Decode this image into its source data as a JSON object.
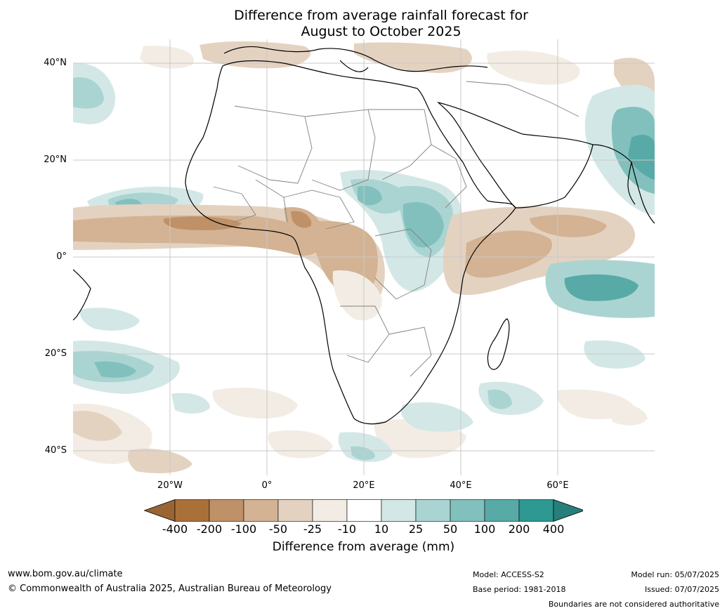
{
  "title": {
    "line1": "Difference from average rainfall forecast for",
    "line2": "August to October 2025"
  },
  "map": {
    "region": "Africa",
    "lat_labels": [
      "40°N",
      "20°N",
      "0°",
      "20°S",
      "40°S"
    ],
    "lon_labels": [
      "20°W",
      "0°",
      "20°E",
      "40°E",
      "60°E"
    ]
  },
  "colorbar": {
    "label": "Difference from average (mm)",
    "tick_labels": [
      "-400",
      "-200",
      "-100",
      "-50",
      "-25",
      "-10",
      "10",
      "25",
      "50",
      "100",
      "200",
      "400"
    ],
    "colors": [
      "#a9703a",
      "#bf9168",
      "#d3b393",
      "#e4d2c1",
      "#f2ece4",
      "#ffffff",
      "#d3e8e6",
      "#aad4d2",
      "#82c0bd",
      "#58aaa6",
      "#2e9892"
    ],
    "end_colors": [
      "#9a6532",
      "#277f7b"
    ]
  },
  "footer": {
    "website": "www.bom.gov.au/climate",
    "copyright": "© Commonwealth of Australia 2025, Australian Bureau of Meteorology",
    "model": "Model: ACCESS-S2",
    "base_period": "Base period: 1981-2018",
    "model_run": "Model run: 05/07/2025",
    "issued": "Issued: 07/07/2025",
    "disclaimer": "Boundaries are not considered authoritative"
  }
}
